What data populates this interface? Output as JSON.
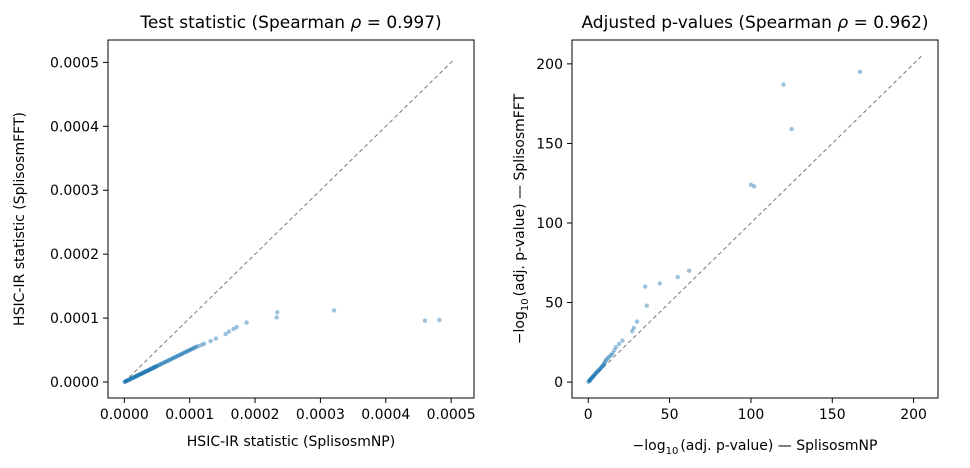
{
  "chart_data": [
    {
      "type": "scatter",
      "title_prefix": "Test statistic (Spearman ",
      "title_rho": "ρ",
      "title_suffix": " = 0.997)",
      "xlabel": "HSIC-IR statistic (SplisosmNP)",
      "ylabel": "HSIC-IR statistic (SplisosmFFT)",
      "xlim": [
        -2.5e-05,
        0.000535
      ],
      "ylim": [
        -2.5e-05,
        0.000535
      ],
      "xticks": [
        0.0,
        0.0001,
        0.0002,
        0.0003,
        0.0004,
        0.0005
      ],
      "yticks": [
        0.0,
        0.0001,
        0.0002,
        0.0003,
        0.0004,
        0.0005
      ],
      "xtick_labels": [
        "0.0000",
        "0.0001",
        "0.0002",
        "0.0003",
        "0.0004",
        "0.0005"
      ],
      "ytick_labels": [
        "0.0000",
        "0.0001",
        "0.0002",
        "0.0003",
        "0.0004",
        "0.0005"
      ],
      "diagonal": [
        0,
        0.000505
      ],
      "x": [
        5e-07,
        1e-06,
        2e-06,
        3e-06,
        4e-06,
        5e-06,
        6e-06,
        7e-06,
        8e-06,
        9e-06,
        1e-05,
        1.1e-05,
        1.2e-05,
        1.3e-05,
        1.4e-05,
        1.5e-05,
        1.6e-05,
        1.7e-05,
        1.8e-05,
        1.9e-05,
        2e-05,
        2.1e-05,
        2.2e-05,
        2.3e-05,
        2.4e-05,
        2.5e-05,
        2.6e-05,
        2.7e-05,
        2.8e-05,
        2.9e-05,
        3e-05,
        3.1e-05,
        3.2e-05,
        3.3e-05,
        3.4e-05,
        3.5e-05,
        3.6e-05,
        3.7e-05,
        3.8e-05,
        3.9e-05,
        4e-05,
        4.1e-05,
        4.2e-05,
        4.3e-05,
        4.4e-05,
        4.5e-05,
        4.6e-05,
        4.7e-05,
        4.8e-05,
        4.9e-05,
        5e-05,
        5.2e-05,
        5.4e-05,
        5.6e-05,
        5.8e-05,
        6e-05,
        6.2e-05,
        6.4e-05,
        6.6e-05,
        6.8e-05,
        7e-05,
        7.2e-05,
        7.4e-05,
        7.6e-05,
        7.8e-05,
        8e-05,
        8.2e-05,
        8.4e-05,
        8.6e-05,
        8.8e-05,
        9e-05,
        9.2e-05,
        9.4e-05,
        9.6e-05,
        9.8e-05,
        0.0001,
        0.000102,
        0.000104,
        0.000106,
        0.000108,
        0.00011,
        0.000113,
        0.000118,
        0.000122,
        0.000132,
        0.00014,
        0.000155,
        0.00016,
        0.000167,
        0.000172,
        0.000187,
        0.000233,
        0.000234,
        0.000321,
        0.00046,
        0.000482
      ],
      "y": [
        2e-07,
        5e-07,
        1e-06,
        1.5e-06,
        2e-06,
        2.5e-06,
        3e-06,
        3.5e-06,
        4e-06,
        4.5e-06,
        5e-06,
        5.5e-06,
        6e-06,
        6.5e-06,
        7e-06,
        7.5e-06,
        8e-06,
        8.5e-06,
        9e-06,
        9.5e-06,
        1e-05,
        1.05e-05,
        1.1e-05,
        1.15e-05,
        1.2e-05,
        1.25e-05,
        1.3e-05,
        1.35e-05,
        1.4e-05,
        1.45e-05,
        1.5e-05,
        1.55e-05,
        1.6e-05,
        1.65e-05,
        1.7e-05,
        1.75e-05,
        1.8e-05,
        1.85e-05,
        1.9e-05,
        1.95e-05,
        2e-05,
        2.05e-05,
        2.1e-05,
        2.15e-05,
        2.2e-05,
        2.25e-05,
        2.3e-05,
        2.35e-05,
        2.4e-05,
        2.45e-05,
        2.5e-05,
        2.6e-05,
        2.7e-05,
        2.8e-05,
        2.9e-05,
        3e-05,
        3.1e-05,
        3.2e-05,
        3.3e-05,
        3.4e-05,
        3.5e-05,
        3.6e-05,
        3.7e-05,
        3.8e-05,
        3.9e-05,
        4e-05,
        4.1e-05,
        4.2e-05,
        4.3e-05,
        4.4e-05,
        4.5e-05,
        4.6e-05,
        4.7e-05,
        4.8e-05,
        4.9e-05,
        5e-05,
        5.1e-05,
        5.2e-05,
        5.3e-05,
        5.4e-05,
        5.5e-05,
        5.6e-05,
        5.8e-05,
        6e-05,
        6.4e-05,
        6.8e-05,
        7.5e-05,
        7.9e-05,
        8.3e-05,
        8.6e-05,
        9.3e-05,
        0.000101,
        0.000109,
        0.000112,
        9.6e-05,
        9.7e-05
      ]
    },
    {
      "type": "scatter",
      "title_prefix": "Adjusted p-values (Spearman ",
      "title_rho": "ρ",
      "title_suffix": " = 0.962)",
      "xlabel_prefix": "−log",
      "xlabel_sub": "10",
      "xlabel_suffix": "(adj. p-value) — SplisosmNP",
      "ylabel_prefix": "−log",
      "ylabel_sub": "10",
      "ylabel_suffix": "(adj. p-value) — SplisosmFFT",
      "xlim": [
        -10,
        215
      ],
      "ylim": [
        -10,
        215
      ],
      "xticks": [
        0,
        50,
        100,
        150,
        200
      ],
      "yticks": [
        0,
        50,
        100,
        150,
        200
      ],
      "xtick_labels": [
        "0",
        "50",
        "100",
        "150",
        "200"
      ],
      "ytick_labels": [
        "0",
        "50",
        "100",
        "150",
        "200"
      ],
      "diagonal": [
        0,
        205
      ],
      "x": [
        0.2,
        0.5,
        0.8,
        1,
        1.3,
        1.6,
        2,
        2.3,
        2.7,
        3,
        3.4,
        3.8,
        4.2,
        4.6,
        5,
        5.5,
        6,
        6.5,
        7,
        7.5,
        8,
        8.5,
        9,
        9.5,
        10,
        10.5,
        11,
        12,
        13,
        14,
        15,
        16,
        17,
        19,
        21,
        27,
        28,
        30,
        35,
        36,
        44,
        55,
        62,
        100,
        102,
        120,
        125,
        167
      ],
      "y": [
        0.3,
        0.6,
        0.9,
        1.2,
        1.6,
        2,
        2.4,
        2.8,
        3.2,
        3.6,
        4,
        4.5,
        5,
        5.5,
        6,
        6.5,
        7,
        7.5,
        8,
        8.6,
        9.2,
        9.8,
        10.4,
        11,
        12,
        13,
        14,
        15,
        16,
        17,
        18,
        20,
        22,
        24,
        26,
        32,
        34,
        38,
        60,
        48,
        62,
        66,
        70,
        124,
        123,
        187,
        159,
        195
      ]
    }
  ]
}
